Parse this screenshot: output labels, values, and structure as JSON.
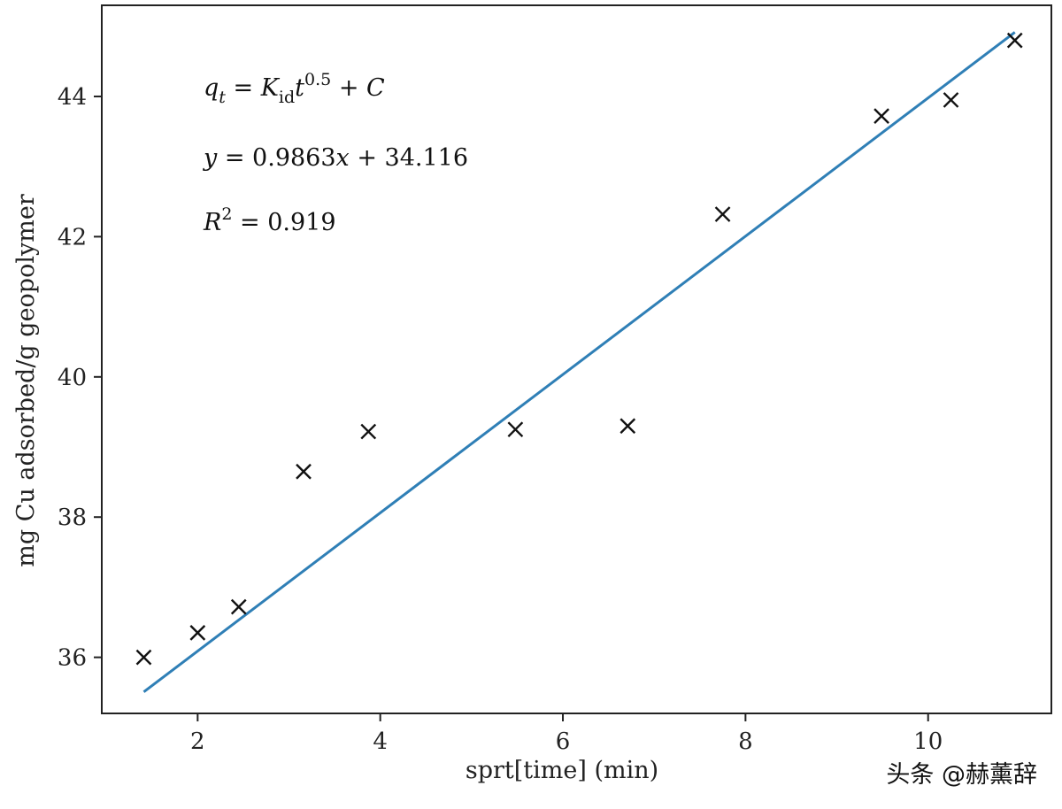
{
  "chart_data": {
    "type": "scatter",
    "xlabel": "sprt[time] (min)",
    "ylabel": "mg Cu adsorbed/g geopolymer",
    "xlim": [
      0.95,
      11.35
    ],
    "ylim": [
      35.2,
      45.3
    ],
    "xticks": [
      2,
      4,
      6,
      8,
      10
    ],
    "yticks": [
      36,
      38,
      40,
      42,
      44
    ],
    "grid": false,
    "series": [
      {
        "marker": "x",
        "color": "#111111",
        "x": [
          1.41,
          2.0,
          2.45,
          3.16,
          3.87,
          5.48,
          6.71,
          7.75,
          9.49,
          10.25,
          10.95
        ],
        "y": [
          36.0,
          36.35,
          36.72,
          38.65,
          39.22,
          39.25,
          39.3,
          42.32,
          43.72,
          43.95,
          44.8
        ]
      }
    ],
    "fit_line": {
      "color": "#2f7fb6",
      "slope": 0.9863,
      "intercept": 34.116,
      "x_range": [
        1.41,
        10.95
      ]
    },
    "annotations": {
      "model": {
        "q": "q",
        "t_sub": "t",
        "eq": " = ",
        "K": "K",
        "id_sub": "id",
        "t": "t",
        "exp": "0.5",
        "plus": " + ",
        "C": "C"
      },
      "fit": {
        "y": "y",
        "eq_left": " = 0.9863",
        "x": "x",
        "eq_right": " + 34.116"
      },
      "r2": {
        "R": "R",
        "exp": "2",
        "eq": " = 0.919"
      }
    }
  },
  "watermark": "头条 @赫薰辞"
}
